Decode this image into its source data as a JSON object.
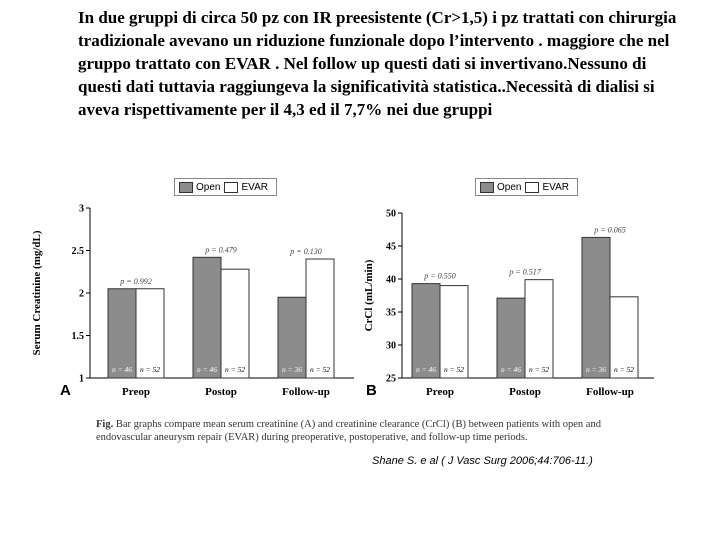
{
  "intro_text": "In due gruppi di circa 50 pz con IR preesistente (Cr>1,5) i pz trattati con chirurgia tradizionale avevano un riduzione funzionale dopo l’intervento . maggiore che nel gruppo trattato con EVAR . Nel follow up questi dati si invertivano.Nessuno di questi dati tuttavia raggiungeva la significatività statistica..Necessità di dialisi si aveva rispettivamente per il 4,3 ed il 7,7% nei due gruppi",
  "legend": {
    "open_label": "Open",
    "evar_label": "EVAR"
  },
  "colors": {
    "open": "#8c8c8c",
    "evar": "#ffffff",
    "outline": "#333333"
  },
  "chart_data": [
    {
      "type": "bar",
      "panel": "A",
      "ylabel": "Serum Creatinine (mg/dL)",
      "xlabel": "",
      "categories": [
        "Preop",
        "Postop",
        "Follow-up"
      ],
      "ylim": [
        1,
        3
      ],
      "yticks": [
        1,
        1.5,
        2,
        2.5,
        3
      ],
      "ytick_labels": [
        "1",
        "1.5",
        "2",
        "2.5",
        "3"
      ],
      "series": [
        {
          "name": "Open",
          "values": [
            2.05,
            2.42,
            1.95
          ],
          "n_labels": [
            "n = 46",
            "n = 46",
            "n = 36"
          ]
        },
        {
          "name": "EVAR",
          "values": [
            2.05,
            2.28,
            2.4
          ],
          "n_labels": [
            "n = 52",
            "n = 52",
            "n = 52"
          ]
        }
      ],
      "p_labels": [
        "p = 0.992",
        "p = 0.479",
        "p = 0.130"
      ]
    },
    {
      "type": "bar",
      "panel": "B",
      "ylabel": "CrCl (mL/min)",
      "xlabel": "",
      "categories": [
        "Preop",
        "Postop",
        "Follow-up"
      ],
      "ylim": [
        25,
        50
      ],
      "yticks": [
        25,
        30,
        35,
        40,
        45,
        50
      ],
      "ytick_labels": [
        "25",
        "30",
        "35",
        "40",
        "45",
        "50"
      ],
      "series": [
        {
          "name": "Open",
          "values": [
            39.3,
            37.1,
            46.3
          ],
          "n_labels": [
            "n = 46",
            "n = 46",
            "n = 36"
          ]
        },
        {
          "name": "EVAR",
          "values": [
            39.0,
            39.9,
            37.3
          ],
          "n_labels": [
            "n = 52",
            "n = 52",
            "n = 52"
          ]
        }
      ],
      "p_labels": [
        "p = 0.550",
        "p = 0.517",
        "p = 0.065"
      ]
    }
  ],
  "caption": {
    "fig_label": "Fig.",
    "text": "Bar graphs compare mean serum creatinine (A) and creatinine clearance (CrCl) (B) between patients with open and endovascular aneurysm repair (EVAR) during preoperative, postoperative, and follow-up time periods."
  },
  "citation": "Shane S. e al ( J Vasc Surg 2006;44:706-11.)"
}
